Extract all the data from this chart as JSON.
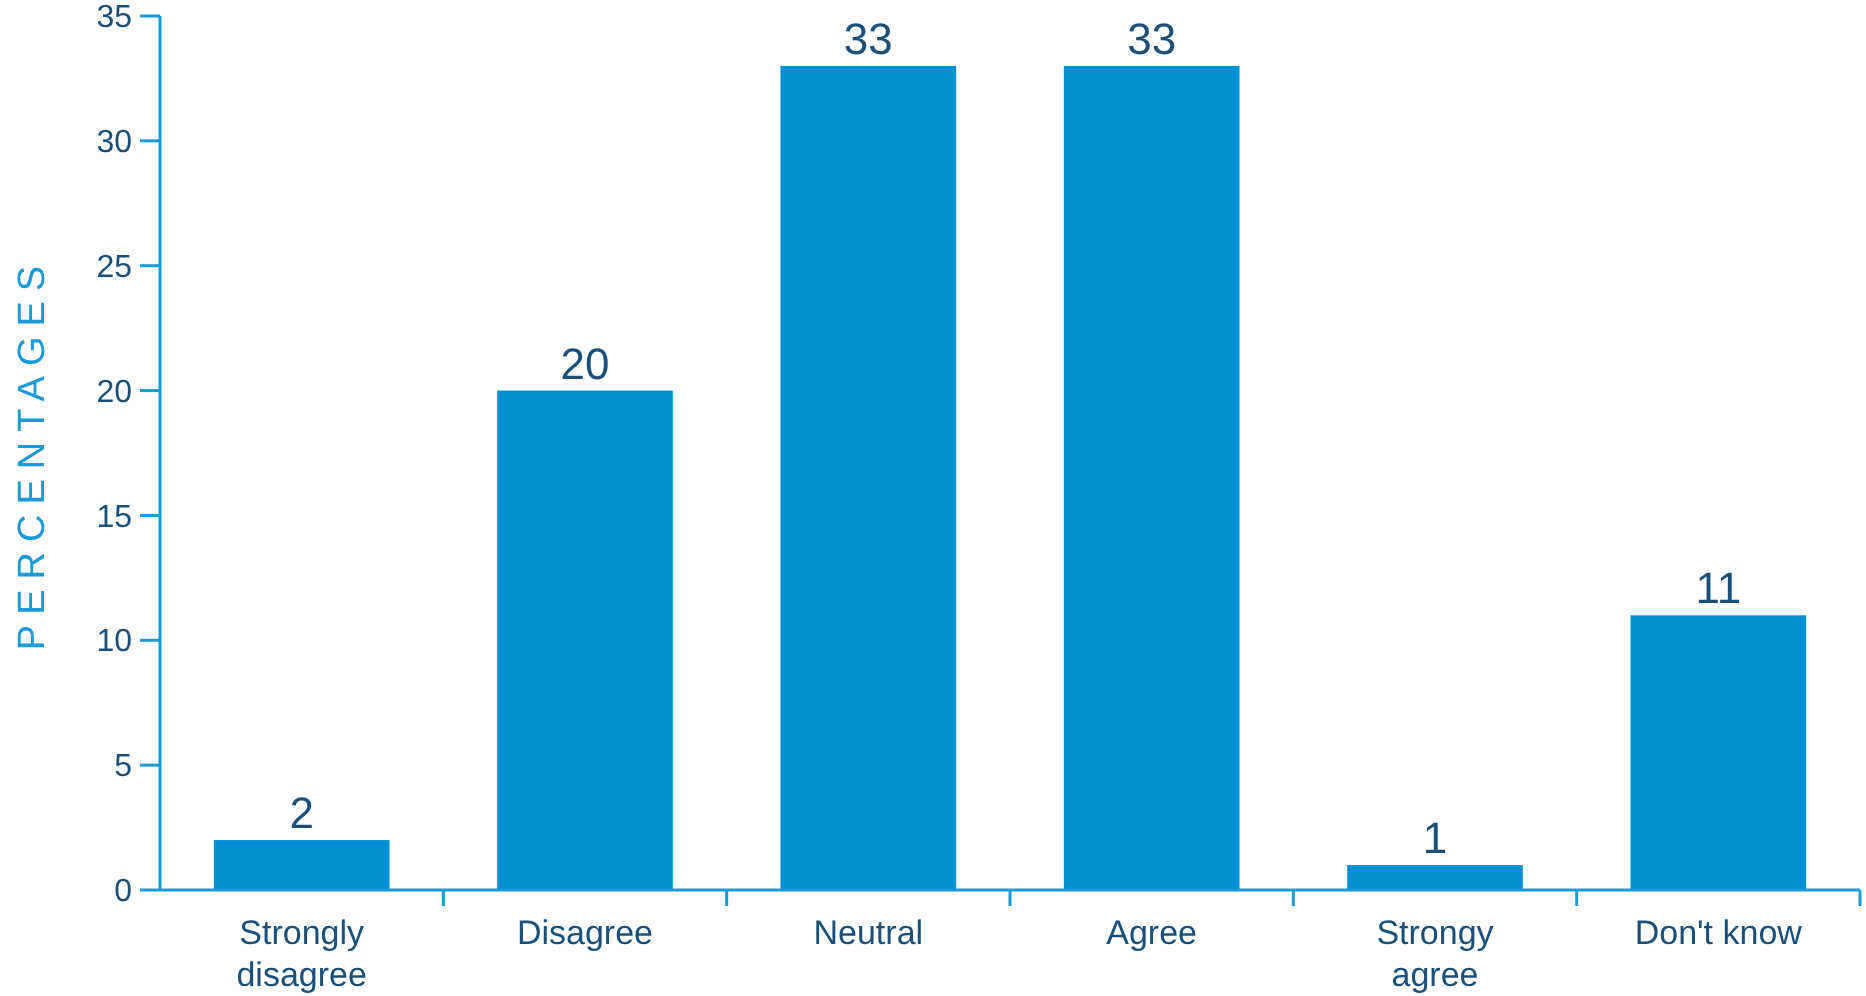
{
  "chart_data": {
    "type": "bar",
    "ylabel": "PERCENTAGES",
    "categories": [
      "Strongly disagree",
      "Disagree",
      "Neutral",
      "Agree",
      "Strongy agree",
      "Don't know"
    ],
    "values": [
      2,
      20,
      33,
      33,
      1,
      11
    ],
    "color": "#0090d4",
    "ylim": [
      0,
      35
    ],
    "yticks": [
      0,
      5,
      10,
      15,
      20,
      25,
      30,
      35
    ],
    "grid": false,
    "data_labels": true
  }
}
